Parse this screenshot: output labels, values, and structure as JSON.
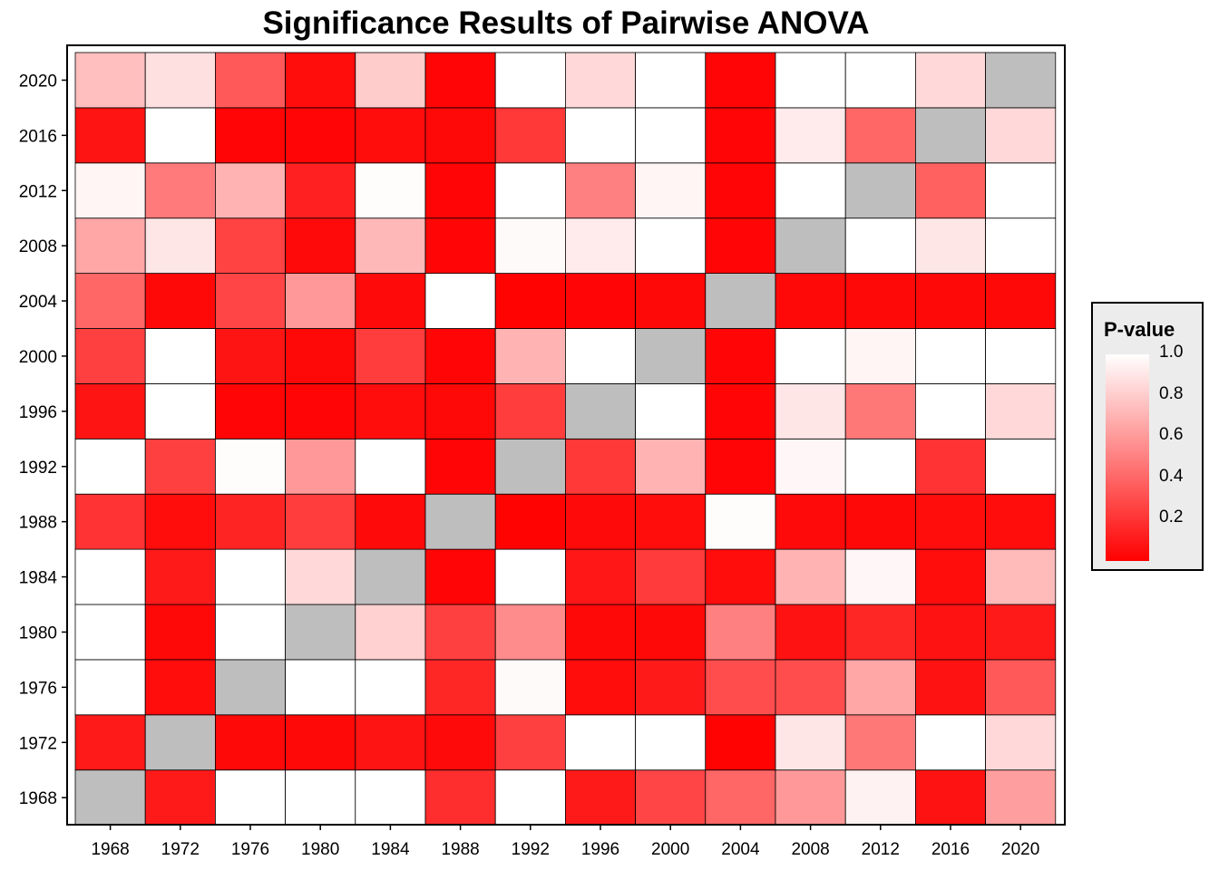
{
  "chart_data": {
    "type": "heatmap",
    "title": "Significance Results of Pairwise ANOVA",
    "xlabel": "",
    "ylabel": "",
    "x": [
      "1968",
      "1972",
      "1976",
      "1980",
      "1984",
      "1988",
      "1992",
      "1996",
      "2000",
      "2004",
      "2008",
      "2012",
      "2016",
      "2020"
    ],
    "y": [
      "1968",
      "1972",
      "1976",
      "1980",
      "1984",
      "1988",
      "1992",
      "1996",
      "2000",
      "2004",
      "2008",
      "2012",
      "2016",
      "2020"
    ],
    "diagonal_color": "#bebebe",
    "color_scale": {
      "low": "#ff0000",
      "high": "#ffffff",
      "min": 0,
      "max": 1
    },
    "legend": {
      "title": "P-value",
      "ticks": [
        "1.0",
        "0.8",
        "0.6",
        "0.4",
        "0.2"
      ],
      "tick_values": [
        1.0,
        0.8,
        0.6,
        0.4,
        0.2
      ],
      "placement": "right"
    },
    "values": [
      [
        null,
        0.1,
        1.0,
        1.0,
        1.0,
        0.18,
        1.0,
        0.1,
        0.27,
        0.4,
        0.6,
        0.95,
        0.07,
        0.62
      ],
      [
        0.1,
        null,
        0.03,
        0.03,
        0.08,
        0.04,
        0.25,
        1.0,
        1.0,
        0.01,
        0.9,
        0.47,
        1.0,
        0.85
      ],
      [
        1.0,
        0.05,
        null,
        1.0,
        1.0,
        0.15,
        0.98,
        0.05,
        0.1,
        0.3,
        0.3,
        0.65,
        0.07,
        0.35
      ],
      [
        1.0,
        0.03,
        1.0,
        null,
        0.82,
        0.25,
        0.55,
        0.03,
        0.03,
        0.5,
        0.07,
        0.15,
        0.07,
        0.1
      ],
      [
        1.0,
        0.1,
        1.0,
        0.85,
        null,
        0.02,
        1.0,
        0.09,
        0.23,
        0.05,
        0.7,
        0.97,
        0.05,
        0.73
      ],
      [
        0.2,
        0.05,
        0.14,
        0.24,
        0.04,
        null,
        0.01,
        0.04,
        0.05,
        0.99,
        0.04,
        0.03,
        0.05,
        0.05
      ],
      [
        1.0,
        0.25,
        0.99,
        0.6,
        1.0,
        0.02,
        null,
        0.22,
        0.7,
        0.02,
        0.97,
        1.0,
        0.2,
        1.0
      ],
      [
        0.08,
        1.0,
        0.02,
        0.02,
        0.05,
        0.03,
        0.24,
        null,
        1.0,
        0.02,
        0.9,
        0.47,
        1.0,
        0.85
      ],
      [
        0.25,
        1.0,
        0.08,
        0.03,
        0.24,
        0.02,
        0.7,
        1.0,
        null,
        0.02,
        1.0,
        0.96,
        1.0,
        1.0
      ],
      [
        0.4,
        0.03,
        0.27,
        0.6,
        0.04,
        1.0,
        0.01,
        0.02,
        0.03,
        null,
        0.03,
        0.03,
        0.03,
        0.03
      ],
      [
        0.65,
        0.9,
        0.26,
        0.04,
        0.72,
        0.02,
        0.98,
        0.92,
        1.0,
        0.02,
        null,
        1.0,
        0.9,
        1.0
      ],
      [
        0.96,
        0.48,
        0.7,
        0.13,
        0.99,
        0.02,
        1.0,
        0.5,
        0.96,
        0.02,
        1.0,
        null,
        0.38,
        1.0
      ],
      [
        0.08,
        1.0,
        0.02,
        0.02,
        0.05,
        0.03,
        0.22,
        1.0,
        1.0,
        0.02,
        0.92,
        0.4,
        null,
        0.85
      ],
      [
        0.75,
        0.88,
        0.35,
        0.05,
        0.8,
        0.02,
        1.0,
        0.85,
        1.0,
        0.02,
        1.0,
        1.0,
        0.85,
        null
      ]
    ]
  }
}
